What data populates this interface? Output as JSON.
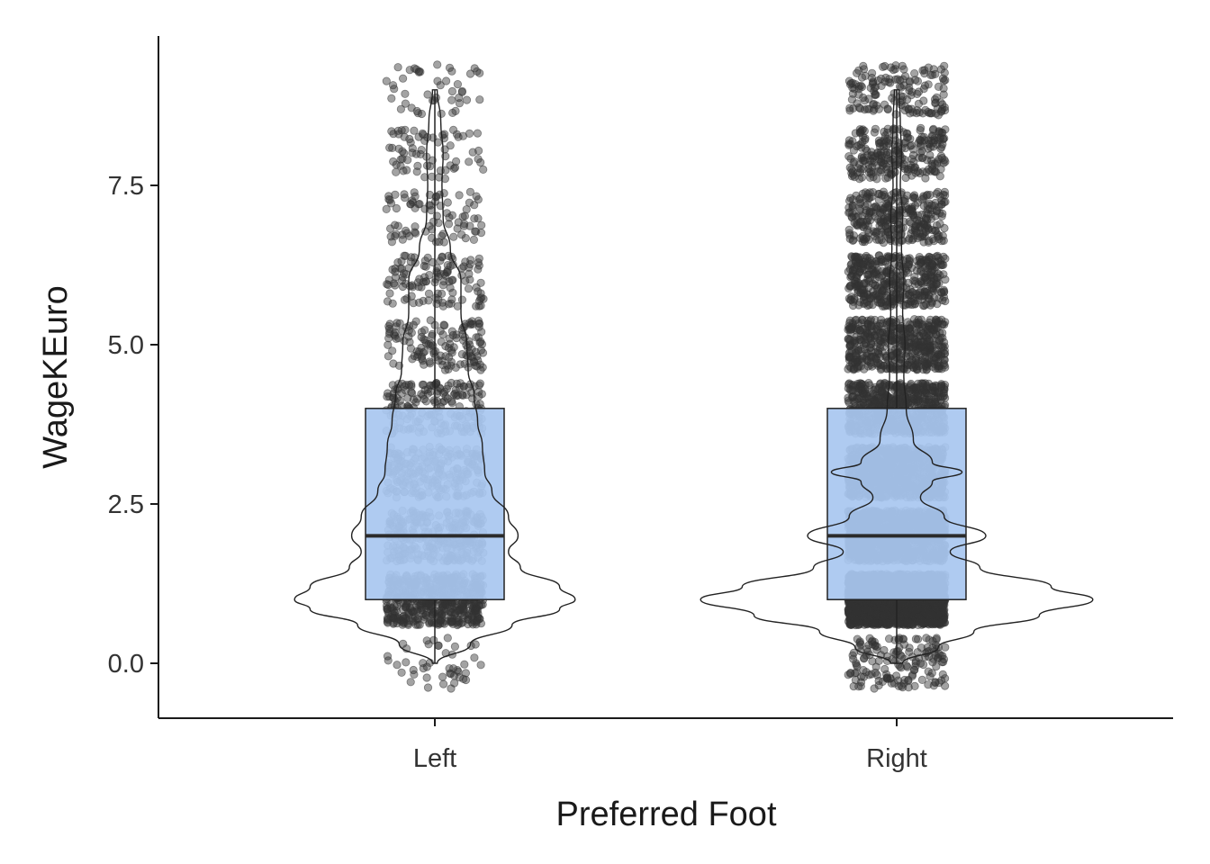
{
  "chart_data": {
    "type": "box",
    "overlays": [
      "violin",
      "jitter-points"
    ],
    "xlabel": "Preferred Foot",
    "ylabel": "WageKEuro",
    "categories": [
      "Left",
      "Right"
    ],
    "ylim": [
      -0.85,
      12.0
    ],
    "yticks": [
      0.0,
      2.5,
      5.0,
      7.5
    ],
    "ytick_labels": [
      "0.0",
      "2.5",
      "5.0",
      "7.5"
    ],
    "grid": false,
    "legend": "none",
    "colors": {
      "box_fill": "#a9c7f0",
      "points": "#333333",
      "axis": "#1a1a1a"
    },
    "boxes": [
      {
        "category": "Left",
        "q1": 1.0,
        "median": 2.0,
        "q3": 4.0,
        "whisker_low": 0.0,
        "whisker_high": 9.0
      },
      {
        "category": "Right",
        "q1": 1.0,
        "median": 2.0,
        "q3": 4.0,
        "whisker_low": 0.0,
        "whisker_high": 9.0
      }
    ],
    "violins": [
      {
        "category": "Left",
        "profile": [
          [
            0.0,
            0.02
          ],
          [
            0.3,
            0.3
          ],
          [
            0.6,
            0.65
          ],
          [
            0.85,
            1.05
          ],
          [
            1.0,
            1.18
          ],
          [
            1.2,
            1.05
          ],
          [
            1.5,
            0.72
          ],
          [
            1.75,
            0.62
          ],
          [
            2.0,
            0.7
          ],
          [
            2.3,
            0.62
          ],
          [
            2.7,
            0.48
          ],
          [
            3.0,
            0.42
          ],
          [
            3.4,
            0.4
          ],
          [
            3.8,
            0.36
          ],
          [
            4.2,
            0.33
          ],
          [
            4.6,
            0.28
          ],
          [
            5.0,
            0.27
          ],
          [
            5.5,
            0.22
          ],
          [
            6.0,
            0.22
          ],
          [
            6.5,
            0.13
          ],
          [
            7.0,
            0.07
          ],
          [
            7.5,
            0.06
          ],
          [
            8.0,
            0.07
          ],
          [
            8.5,
            0.05
          ],
          [
            9.0,
            0.02
          ]
        ]
      },
      {
        "category": "Right",
        "profile": [
          [
            0.0,
            0.05
          ],
          [
            0.25,
            0.35
          ],
          [
            0.5,
            0.65
          ],
          [
            0.75,
            1.2
          ],
          [
            1.0,
            1.65
          ],
          [
            1.2,
            1.3
          ],
          [
            1.5,
            0.7
          ],
          [
            1.75,
            0.45
          ],
          [
            2.0,
            0.75
          ],
          [
            2.3,
            0.4
          ],
          [
            2.6,
            0.2
          ],
          [
            2.85,
            0.3
          ],
          [
            3.0,
            0.55
          ],
          [
            3.15,
            0.3
          ],
          [
            3.5,
            0.14
          ],
          [
            4.0,
            0.08
          ],
          [
            4.5,
            0.06
          ],
          [
            5.0,
            0.07
          ],
          [
            5.5,
            0.05
          ],
          [
            6.0,
            0.06
          ],
          [
            6.5,
            0.04
          ],
          [
            7.0,
            0.05
          ],
          [
            7.5,
            0.03
          ],
          [
            8.0,
            0.04
          ],
          [
            8.5,
            0.03
          ],
          [
            9.0,
            0.02
          ]
        ]
      }
    ],
    "jitter": [
      {
        "category": "Left",
        "levels": [
          0,
          1,
          2,
          3,
          4,
          5,
          6,
          7,
          8,
          9
        ],
        "counts": [
          45,
          520,
          260,
          210,
          180,
          140,
          120,
          85,
          70,
          45
        ]
      },
      {
        "category": "Right",
        "levels": [
          0,
          1,
          2,
          3,
          4,
          5,
          6,
          7,
          8,
          9
        ],
        "counts": [
          160,
          2100,
          1000,
          800,
          640,
          500,
          420,
          310,
          250,
          150
        ]
      }
    ]
  }
}
